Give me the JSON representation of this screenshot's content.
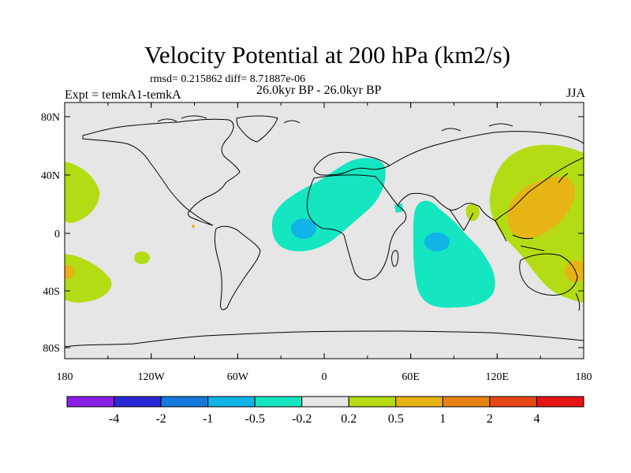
{
  "title": "Velocity Potential at 200 hPa (km2/s)",
  "stats_line": "rmsd= 0.215862 diff= 8.71887e-06",
  "experiment_label": "Expt = temkA1-temkA",
  "period_label": "26.0kyr BP - 26.0kyr BP",
  "season_label": "JJA",
  "y_ticks": [
    "80N",
    "40N",
    "0",
    "40S",
    "80S"
  ],
  "x_ticks": [
    "180",
    "120W",
    "60W",
    "0",
    "60E",
    "120E",
    "180"
  ],
  "colorbar": {
    "labels": [
      "-4",
      "-2",
      "-1",
      "-0.5",
      "-0.2",
      "0.2",
      "0.5",
      "1",
      "2",
      "4"
    ],
    "colors": [
      "#8a1ee6",
      "#2828d4",
      "#1478dc",
      "#10b4e6",
      "#14e6c0",
      "#e6e6e6",
      "#b4dc14",
      "#e6b414",
      "#e68214",
      "#e64614",
      "#e61414"
    ]
  },
  "colors": {
    "background_field": "#e6e6e6",
    "neg_small": "#14e6c0",
    "neg_mid": "#10b4e6",
    "pos_small": "#b4dc14",
    "pos_mid": "#e6b414"
  }
}
